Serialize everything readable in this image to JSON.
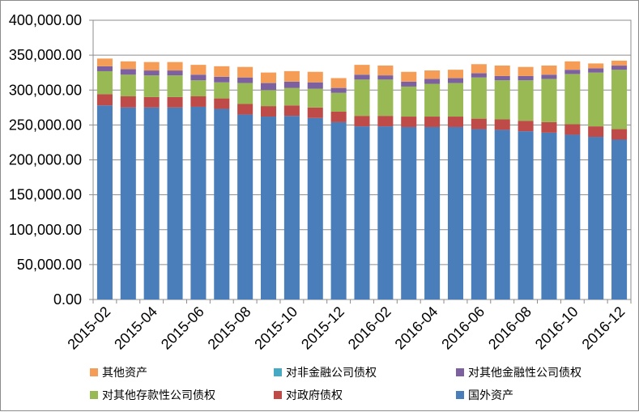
{
  "chart_data": {
    "type": "bar",
    "stacked": true,
    "ylim": [
      0,
      400000
    ],
    "yticks": [
      "0.00",
      "50,000.00",
      "100,000.00",
      "150,000.00",
      "200,000.00",
      "250,000.00",
      "300,000.00",
      "350,000.00",
      "400,000.00"
    ],
    "ytick_values": [
      0,
      50000,
      100000,
      150000,
      200000,
      250000,
      300000,
      350000,
      400000
    ],
    "grid": true,
    "legend_position": "bottom",
    "categories": [
      "2015-02",
      "2015-03",
      "2015-04",
      "2015-05",
      "2015-06",
      "2015-07",
      "2015-08",
      "2015-09",
      "2015-10",
      "2015-11",
      "2015-12",
      "2016-01",
      "2016-02",
      "2016-03",
      "2016-04",
      "2016-05",
      "2016-06",
      "2016-07",
      "2016-08",
      "2016-09",
      "2016-10",
      "2016-11",
      "2016-12"
    ],
    "x_tick_labels": [
      "2015-02",
      "2015-04",
      "2015-06",
      "2015-08",
      "2015-10",
      "2015-12",
      "2016-02",
      "2016-04",
      "2016-06",
      "2016-08",
      "2016-10",
      "2016-12"
    ],
    "series": [
      {
        "name": "国外资产",
        "color": "#4a7ebb",
        "values": [
          278000,
          275000,
          275000,
          275000,
          276000,
          273000,
          265000,
          262000,
          263000,
          260000,
          254000,
          248000,
          248000,
          247000,
          247000,
          247000,
          244000,
          243000,
          241000,
          239000,
          236000,
          233000,
          229000
        ]
      },
      {
        "name": "对政府债权",
        "color": "#be4b48",
        "values": [
          16000,
          16000,
          15000,
          15000,
          15000,
          15000,
          15000,
          15000,
          15000,
          15000,
          15000,
          15000,
          15000,
          15000,
          15000,
          15000,
          15000,
          15000,
          15000,
          15000,
          15000,
          15000,
          15000
        ]
      },
      {
        "name": "对其他存款性公司债权",
        "color": "#98b954",
        "values": [
          33000,
          31000,
          31000,
          31000,
          23000,
          23000,
          30000,
          23000,
          25000,
          27000,
          27000,
          52000,
          52000,
          43000,
          47000,
          48000,
          59000,
          56000,
          58000,
          62000,
          72000,
          77000,
          85000
        ]
      },
      {
        "name": "对其他金融性公司债权",
        "color": "#7d60a0",
        "values": [
          7000,
          8000,
          7000,
          7000,
          8000,
          8000,
          8000,
          10000,
          9000,
          9000,
          7000,
          7000,
          6000,
          7000,
          7000,
          7000,
          6000,
          6000,
          6000,
          6000,
          6000,
          6000,
          6000
        ]
      },
      {
        "name": "对非金融公司债权",
        "color": "#46aac5",
        "values": [
          100,
          100,
          100,
          100,
          100,
          100,
          100,
          100,
          100,
          100,
          100,
          100,
          100,
          100,
          100,
          100,
          100,
          100,
          100,
          100,
          100,
          100,
          100
        ]
      },
      {
        "name": "其他资产",
        "color": "#f59d56",
        "values": [
          11000,
          11000,
          12000,
          12000,
          14000,
          15000,
          15000,
          15000,
          15000,
          15000,
          14000,
          14000,
          14000,
          14000,
          12000,
          12000,
          13000,
          15000,
          13000,
          13000,
          12000,
          7000,
          7000
        ]
      }
    ],
    "legend_order": [
      "其他资产",
      "对非金融公司债权",
      "对其他金融性公司债权",
      "对其他存款性公司债权",
      "对政府债权",
      "国外资产"
    ]
  }
}
